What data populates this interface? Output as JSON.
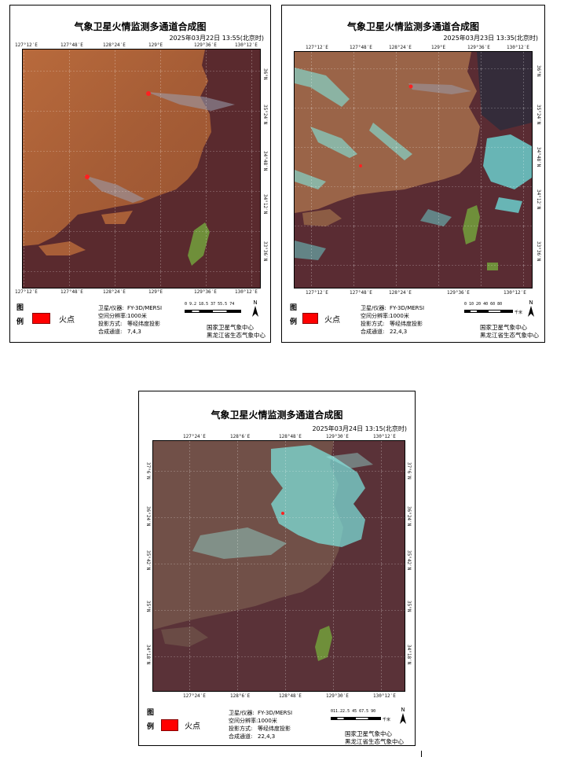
{
  "panels": [
    {
      "title": "气象卫星火情监测多通道合成图",
      "datetime": "2025年03月22日 13:55(北京时)",
      "lon_ticks_top": [
        "127°12′E",
        "127°48′E",
        "128°24′E",
        "129°E",
        "129°36′E",
        "130°12′E"
      ],
      "lon_ticks_bottom": [
        "127°12′E",
        "127°48′E",
        "128°24′E",
        "129°E",
        "129°36′E",
        "130°12′E"
      ],
      "lat_ticks": [
        "36°N",
        "35°24′N",
        "34°48′N",
        "34°12′N",
        "33°36′N"
      ],
      "legend_heading_top": "图",
      "legend_heading_bottom": "例",
      "legend_fire_label": "火点",
      "meta": [
        {
          "k": "卫星/仪器:",
          "v": "FY-3D/MERSI"
        },
        {
          "k": "空间分辨率:",
          "v": "1000米"
        },
        {
          "k": "投影方式:",
          "v": "等经纬度投影"
        },
        {
          "k": "合成通道:",
          "v": "7,4,3"
        }
      ],
      "scale_numbers": "0 9.2 18.5  37   55.5  74",
      "scale_unit": "千米",
      "north": "N",
      "agency_lines": [
        "国家卫星气象中心",
        "黑龙江省生态气象中心"
      ]
    },
    {
      "title": "气象卫星火情监测多通道合成图",
      "datetime": "2025年03月23日 13:35(北京时)",
      "lon_ticks_top": [
        "127°12′E",
        "127°48′E",
        "128°24′E",
        "129°E",
        "129°36′E",
        "130°12′E"
      ],
      "lon_ticks_bottom": [
        "127°12′E",
        "127°48′E",
        "128°24′E",
        "129°36′E",
        "130°12′E"
      ],
      "lat_ticks": [
        "36°N",
        "35°24′N",
        "34°48′N",
        "34°12′N",
        "33°36′N"
      ],
      "legend_heading_top": "图",
      "legend_heading_bottom": "例",
      "legend_fire_label": "火点",
      "meta": [
        {
          "k": "卫星/仪器:",
          "v": "FY-3D/MERSI"
        },
        {
          "k": "空间分辨率:",
          "v": "1000米"
        },
        {
          "k": "投影方式:",
          "v": "等经纬度投影"
        },
        {
          "k": "合成通道:",
          "v": "22,4,3"
        }
      ],
      "scale_numbers": "0  10 20   40   60   80",
      "scale_unit": "千米",
      "north": "N",
      "agency_lines": [
        "国家卫星气象中心",
        "黑龙江省生态气象中心"
      ]
    },
    {
      "title": "气象卫星火情监测多通道合成图",
      "datetime": "2025年03月24日 13:15(北京时)",
      "lon_ticks_top": [
        "127°24′E",
        "128°6′E",
        "128°48′E",
        "129°30′E",
        "130°12′E"
      ],
      "lon_ticks_bottom": [
        "127°24′E",
        "128°6′E",
        "128°48′E",
        "129°30′E",
        "130°12′E"
      ],
      "lat_ticks": [
        "37°6′N",
        "36°24′N",
        "35°42′N",
        "35°N",
        "34°18′N"
      ],
      "legend_heading_top": "图",
      "legend_heading_bottom": "例",
      "legend_fire_label": "火点",
      "meta": [
        {
          "k": "卫星/仪器:",
          "v": "FY-3D/MERSI"
        },
        {
          "k": "空间分辨率:",
          "v": "1000米"
        },
        {
          "k": "投影方式:",
          "v": "等经纬度投影"
        },
        {
          "k": "合成通道:",
          "v": "22,4,3"
        }
      ],
      "scale_numbers": "011.22.5  45   67.5  90",
      "scale_unit": "千米",
      "north": "N",
      "agency_lines": [
        "国家卫星气象中心",
        "黑龙江省生态气象中心"
      ]
    }
  ],
  "colors": {
    "land": "#b5673a",
    "sea": "#5a2a2c",
    "fire": "#ff0000",
    "cloud": "#7ff4ee",
    "smoke": "#a0a0b0",
    "island": "#6f8f3a"
  }
}
